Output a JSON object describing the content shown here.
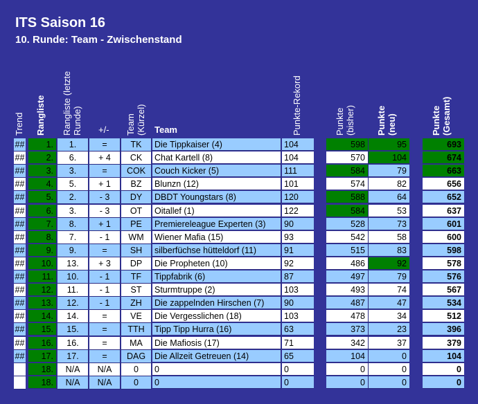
{
  "title": "ITS Saison 16",
  "subtitle": "10. Runde: Team - Zwischenstand",
  "headers": {
    "trend": "Trend",
    "rang": "Rangliste",
    "rang_last": "Rangliste (letzte Runde)",
    "diff": "+/-",
    "kuerzel": "Team (Kürzel)",
    "team": "Team",
    "rekord": "Punkte-Rekord",
    "bisher": "Punkte (bisher)",
    "neu": "Punkte (neu)",
    "gesamt": "Punkte (Gesamt)"
  },
  "colors": {
    "background": "#333399",
    "row_blue": "#99ccff",
    "row_white": "#ffffff",
    "green": "#008000"
  },
  "rows": [
    {
      "trend": "##",
      "rang": "1.",
      "last": "1.",
      "diff": "=",
      "k": "TK",
      "team": "Die Tippkaiser (4)",
      "rek": "104",
      "bisher": "598",
      "neu": "95",
      "ges": "693",
      "gb": true,
      "gn": true,
      "gg": true
    },
    {
      "trend": "##",
      "rang": "2.",
      "last": "6.",
      "diff": "+ 4",
      "k": "CK",
      "team": "Chat Kartell (8)",
      "rek": "104",
      "bisher": "570",
      "neu": "104",
      "ges": "674",
      "gb": false,
      "gn": true,
      "gg": true
    },
    {
      "trend": "##",
      "rang": "3.",
      "last": "3.",
      "diff": "=",
      "k": "COK",
      "team": "Couch Kicker (5)",
      "rek": "111",
      "bisher": "584",
      "neu": "79",
      "ges": "663",
      "gb": true,
      "gn": false,
      "gg": true
    },
    {
      "trend": "##",
      "rang": "4.",
      "last": "5.",
      "diff": "+ 1",
      "k": "BZ",
      "team": "Blunzn (12)",
      "rek": "101",
      "bisher": "574",
      "neu": "82",
      "ges": "656",
      "gb": false,
      "gn": false,
      "gg": false
    },
    {
      "trend": "##",
      "rang": "5.",
      "last": "2.",
      "diff": "- 3",
      "k": "DY",
      "team": "DBDT Youngstars (8)",
      "rek": "120",
      "bisher": "588",
      "neu": "64",
      "ges": "652",
      "gb": true,
      "gn": false,
      "gg": false
    },
    {
      "trend": "##",
      "rang": "6.",
      "last": "3.",
      "diff": "- 3",
      "k": "OT",
      "team": "Oitallef (1)",
      "rek": "122",
      "bisher": "584",
      "neu": "53",
      "ges": "637",
      "gb": true,
      "gn": false,
      "gg": false
    },
    {
      "trend": "##",
      "rang": "7.",
      "last": "8.",
      "diff": "+ 1",
      "k": "PE",
      "team": "Premiereleague Experten (3)",
      "rek": "90",
      "bisher": "528",
      "neu": "73",
      "ges": "601",
      "gb": false,
      "gn": false,
      "gg": false
    },
    {
      "trend": "##",
      "rang": "8.",
      "last": "7.",
      "diff": "- 1",
      "k": "WM",
      "team": "Wiener Mafia (15)",
      "rek": "93",
      "bisher": "542",
      "neu": "58",
      "ges": "600",
      "gb": false,
      "gn": false,
      "gg": false
    },
    {
      "trend": "##",
      "rang": "9.",
      "last": "9.",
      "diff": "=",
      "k": "SH",
      "team": "silberfüchse hütteldorf (11)",
      "rek": "91",
      "bisher": "515",
      "neu": "83",
      "ges": "598",
      "gb": false,
      "gn": false,
      "gg": false
    },
    {
      "trend": "##",
      "rang": "10.",
      "last": "13.",
      "diff": "+ 3",
      "k": "DP",
      "team": "Die Propheten (10)",
      "rek": "92",
      "bisher": "486",
      "neu": "92",
      "ges": "578",
      "gb": false,
      "gn": true,
      "gg": false
    },
    {
      "trend": "##",
      "rang": "11.",
      "last": "10.",
      "diff": "- 1",
      "k": "TF",
      "team": "Tippfabrik (6)",
      "rek": "87",
      "bisher": "497",
      "neu": "79",
      "ges": "576",
      "gb": false,
      "gn": false,
      "gg": false
    },
    {
      "trend": "##",
      "rang": "12.",
      "last": "11.",
      "diff": "- 1",
      "k": "ST",
      "team": "Sturmtruppe (2)",
      "rek": "103",
      "bisher": "493",
      "neu": "74",
      "ges": "567",
      "gb": false,
      "gn": false,
      "gg": false
    },
    {
      "trend": "##",
      "rang": "13.",
      "last": "12.",
      "diff": "- 1",
      "k": "ZH",
      "team": "Die zappelnden Hirschen (7)",
      "rek": "90",
      "bisher": "487",
      "neu": "47",
      "ges": "534",
      "gb": false,
      "gn": false,
      "gg": false
    },
    {
      "trend": "##",
      "rang": "14.",
      "last": "14.",
      "diff": "=",
      "k": "VE",
      "team": "Die Vergesslichen (18)",
      "rek": "103",
      "bisher": "478",
      "neu": "34",
      "ges": "512",
      "gb": false,
      "gn": false,
      "gg": false
    },
    {
      "trend": "##",
      "rang": "15.",
      "last": "15.",
      "diff": "=",
      "k": "TTH",
      "team": "Tipp Tipp Hurra (16)",
      "rek": "63",
      "bisher": "373",
      "neu": "23",
      "ges": "396",
      "gb": false,
      "gn": false,
      "gg": false
    },
    {
      "trend": "##",
      "rang": "16.",
      "last": "16.",
      "diff": "=",
      "k": "MA",
      "team": "Die Mafiosis (17)",
      "rek": "71",
      "bisher": "342",
      "neu": "37",
      "ges": "379",
      "gb": false,
      "gn": false,
      "gg": false
    },
    {
      "trend": "##",
      "rang": "17.",
      "last": "17.",
      "diff": "=",
      "k": "DAG",
      "team": "Die Allzeit Getreuen (14)",
      "rek": "65",
      "bisher": "104",
      "neu": "0",
      "ges": "104",
      "gb": false,
      "gn": false,
      "gg": false
    },
    {
      "trend": "",
      "rang": "18.",
      "last": "N/A",
      "diff": "N/A",
      "k": "0",
      "team": "0",
      "rek": "0",
      "bisher": "0",
      "neu": "0",
      "ges": "0",
      "gb": false,
      "gn": false,
      "gg": false
    },
    {
      "trend": "",
      "rang": "18.",
      "last": "N/A",
      "diff": "N/A",
      "k": "0",
      "team": "0",
      "rek": "0",
      "bisher": "0",
      "neu": "0",
      "ges": "0",
      "gb": false,
      "gn": false,
      "gg": false
    }
  ]
}
